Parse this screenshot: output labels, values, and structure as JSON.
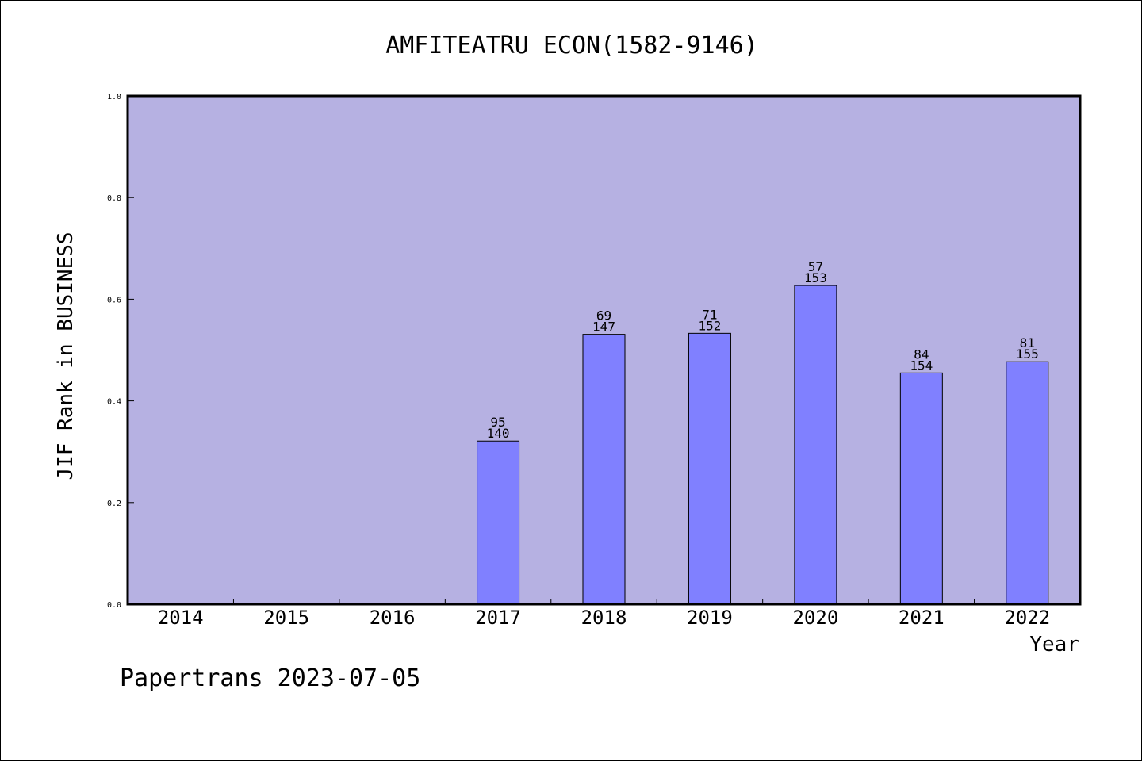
{
  "chart_data": {
    "type": "bar",
    "title": "AMFITEATRU ECON(1582-9146)",
    "xlabel": "Year",
    "ylabel": "JIF Rank in BUSINESS",
    "categories": [
      "2014",
      "2015",
      "2016",
      "2017",
      "2018",
      "2019",
      "2020",
      "2021",
      "2022"
    ],
    "values": [
      null,
      null,
      null,
      0.321,
      0.531,
      0.533,
      0.627,
      0.455,
      0.477
    ],
    "rank": [
      null,
      null,
      null,
      "95",
      "69",
      "71",
      "57",
      "84",
      "81"
    ],
    "total": [
      null,
      null,
      null,
      "140",
      "147",
      "152",
      "153",
      "154",
      "155"
    ],
    "ylim": [
      0,
      1.0
    ],
    "yticks": [
      "0.0",
      "0.2",
      "0.4",
      "0.6",
      "0.8",
      "1.0"
    ],
    "plot_background": "#b6b1e2",
    "bar_color": "#8080ff",
    "grid": false
  },
  "footer": {
    "source_label": "Papertrans 2023-07-05"
  }
}
